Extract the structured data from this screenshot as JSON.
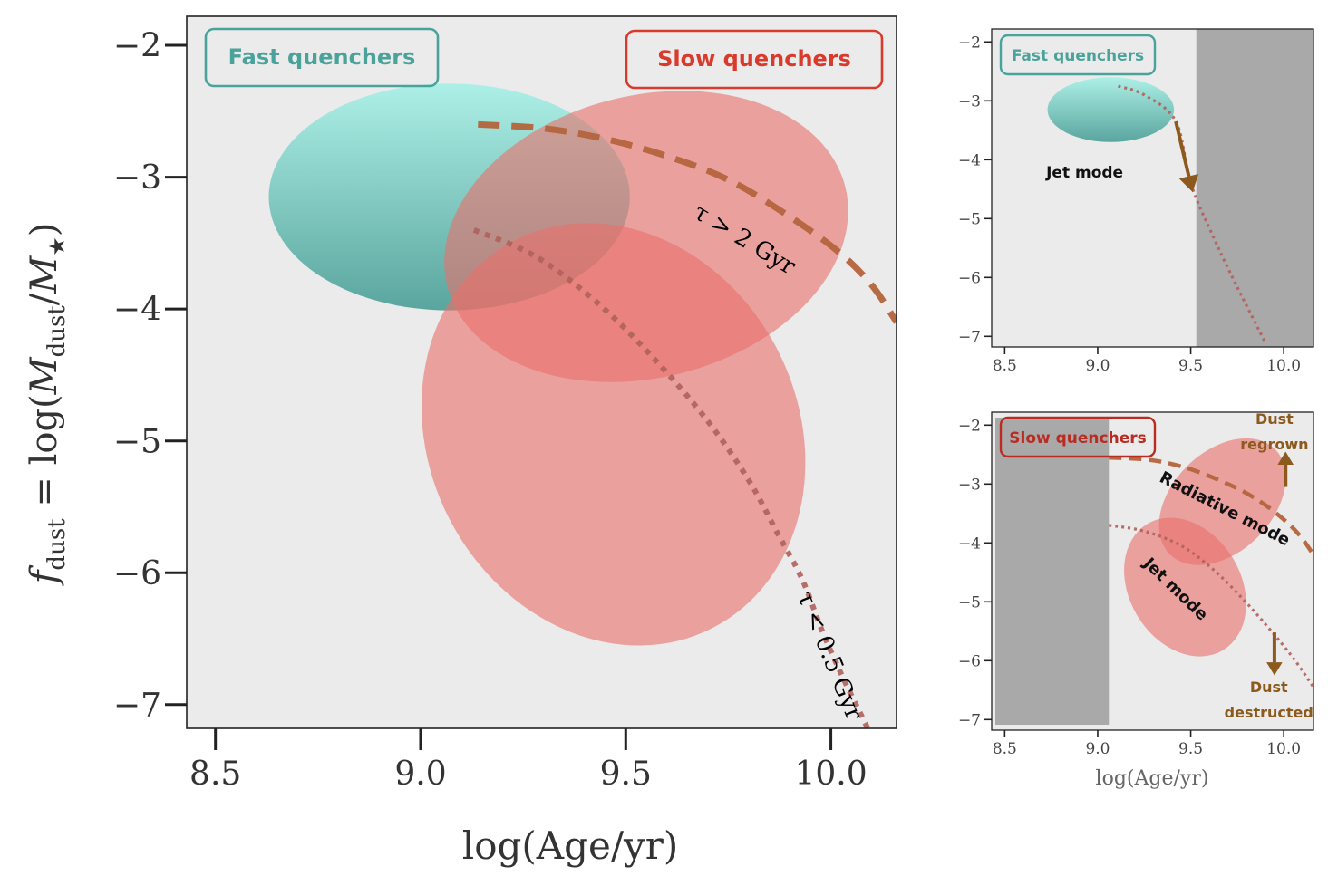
{
  "colors": {
    "panel_bg": "#ebebeb",
    "fast": "#4aa39b",
    "fast_fill_top": "#a6f0e6",
    "fast_fill_bottom": "#4a9e96",
    "slow": "#d83a2c",
    "slow_fill": "#e9706a",
    "track_dash": "#b4643c",
    "track_dot": "#b0615d",
    "arrow": "#8b5a1c",
    "grey_zone": "#a9a9a9"
  },
  "chart_data": [
    {
      "type": "scatter",
      "title": "",
      "xlabel": "log(Age/yr)",
      "ylabel": "f_dust = log(M_dust/M_★)",
      "ylabel_parts": {
        "f": "f",
        "f_sub": "dust",
        "eq": " = log(",
        "M1": "M",
        "M1_sub": "dust",
        "slash": "/",
        "M2": "M",
        "M2_sub": "★",
        "close": ")"
      },
      "xlim": [
        8.43,
        10.16
      ],
      "ylim": [
        -7.18,
        -1.78
      ],
      "xticks": [
        8.5,
        9.0,
        9.5,
        10.0
      ],
      "xtick_labels": [
        "8.5",
        "9.0",
        "9.5",
        "10.0"
      ],
      "yticks": [
        -2,
        -3,
        -4,
        -5,
        -6,
        -7
      ],
      "ytick_labels": [
        "−2",
        "−3",
        "−4",
        "−5",
        "−6",
        "−7"
      ],
      "grid": false,
      "legend_boxes": [
        {
          "label": "Fast quenchers",
          "placement": "top-left",
          "color": "fast"
        },
        {
          "label": "Slow quenchers",
          "placement": "top-right",
          "color": "slow"
        }
      ],
      "regions": [
        {
          "group": "fast",
          "cx": 9.07,
          "cy": -3.15,
          "rx": 0.44,
          "ry": 0.86,
          "angle": 0
        },
        {
          "group": "slow",
          "cx": 9.55,
          "cy": -3.45,
          "rx": 0.5,
          "ry": 1.07,
          "angle": -14
        },
        {
          "group": "slow",
          "cx": 9.47,
          "cy": -4.95,
          "rx": 0.45,
          "ry": 1.65,
          "angle": -27
        }
      ],
      "tracks": [
        {
          "label": "τ > 2 Gyr",
          "style": "dashed",
          "color": "track_dash",
          "x": [
            9.14,
            9.3,
            9.45,
            9.6,
            9.75,
            9.9,
            10.02,
            10.1,
            10.16
          ],
          "y": [
            -2.6,
            -2.63,
            -2.71,
            -2.84,
            -3.02,
            -3.3,
            -3.57,
            -3.82,
            -4.1
          ]
        },
        {
          "label": "τ < 0.5 Gyr",
          "style": "dotted",
          "color": "track_dot",
          "x": [
            9.13,
            9.28,
            9.43,
            9.57,
            9.7,
            9.8,
            9.87,
            9.93,
            9.98,
            10.03,
            10.09
          ],
          "y": [
            -3.4,
            -3.6,
            -3.95,
            -4.38,
            -4.85,
            -5.3,
            -5.7,
            -6.05,
            -6.45,
            -6.8,
            -7.18
          ]
        }
      ],
      "annotations": [
        {
          "text": "τ > 2 Gyr",
          "x": 9.78,
          "y": -3.52,
          "rotation": 31
        },
        {
          "text": "τ < 0.5 Gyr",
          "x": 9.98,
          "y": -6.65,
          "rotation": 68
        }
      ]
    },
    {
      "type": "scatter",
      "title": "",
      "xlabel": "",
      "xlim": [
        8.43,
        10.16
      ],
      "ylim": [
        -7.18,
        -1.78
      ],
      "xticks": [
        8.5,
        9.0,
        9.5,
        10.0
      ],
      "xtick_labels": [
        "8.5",
        "9.0",
        "9.5",
        "10.0"
      ],
      "yticks": [
        -2,
        -3,
        -4,
        -5,
        -6,
        -7
      ],
      "ytick_labels": [
        "−2",
        "−3",
        "−4",
        "−5",
        "−6",
        "−7"
      ],
      "legend_box": {
        "label": "Fast quenchers",
        "placement": "top-left",
        "color": "fast"
      },
      "grey_zone": {
        "x0": 9.53,
        "x1": 10.16
      },
      "regions": [
        {
          "group": "fast",
          "cx": 9.07,
          "cy": -3.15,
          "rx": 0.34,
          "ry": 0.55,
          "angle": 0
        }
      ],
      "tracks": [
        {
          "style": "dotted",
          "x": [
            9.11,
            9.25,
            9.42,
            9.5,
            9.62,
            9.74,
            9.86,
            9.9
          ],
          "y": [
            -2.75,
            -2.9,
            -3.35,
            -4.4,
            -5.3,
            -6.1,
            -6.85,
            -7.1
          ]
        }
      ],
      "arrow": {
        "from": [
          9.42,
          -3.35
        ],
        "to": [
          9.51,
          -4.55
        ]
      },
      "annotations": [
        {
          "text": "Jet mode",
          "x": 8.93,
          "y": -4.3
        }
      ]
    },
    {
      "type": "scatter",
      "title": "",
      "xlabel": "log(Age/yr)",
      "xlim": [
        8.43,
        10.16
      ],
      "ylim": [
        -7.18,
        -1.78
      ],
      "xticks": [
        8.5,
        9.0,
        9.5,
        10.0
      ],
      "xtick_labels": [
        "8.5",
        "9.0",
        "9.5",
        "10.0"
      ],
      "yticks": [
        -2,
        -3,
        -4,
        -5,
        -6,
        -7
      ],
      "ytick_labels": [
        "−2",
        "−3",
        "−4",
        "−5",
        "−6",
        "−7"
      ],
      "legend_box": {
        "label": "Slow quenchers",
        "placement": "top-left",
        "color": "slow"
      },
      "grey_zone": {
        "x0": 8.43,
        "x1": 9.06
      },
      "regions": [
        {
          "group": "slow",
          "cx": 9.67,
          "cy": -3.3,
          "rx": 0.4,
          "ry": 0.85,
          "angle": -45
        },
        {
          "group": "slow",
          "cx": 9.47,
          "cy": -4.75,
          "rx": 0.3,
          "ry": 1.25,
          "angle": -31
        }
      ],
      "tracks": [
        {
          "style": "dashed",
          "x": [
            9.06,
            9.3,
            9.5,
            9.7,
            9.85,
            9.98,
            10.08,
            10.16
          ],
          "y": [
            -2.55,
            -2.6,
            -2.75,
            -3.0,
            -3.25,
            -3.55,
            -3.85,
            -4.2
          ]
        },
        {
          "style": "dotted",
          "x": [
            9.06,
            9.25,
            9.45,
            9.62,
            9.78,
            9.92,
            10.05,
            10.16
          ],
          "y": [
            -3.7,
            -3.8,
            -4.05,
            -4.45,
            -4.95,
            -5.45,
            -5.95,
            -6.45
          ]
        }
      ],
      "arrows": [
        {
          "from": [
            10.01,
            -3.05
          ],
          "to": [
            10.01,
            -2.45
          ],
          "label": [
            "Dust",
            "regrown"
          ],
          "label_x": 9.95,
          "label_y": -2.12
        },
        {
          "from": [
            9.95,
            -5.52
          ],
          "to": [
            9.95,
            -6.25
          ],
          "label": [
            "Dust",
            "destructed"
          ],
          "label_x": 9.92,
          "label_y": -6.67
        }
      ],
      "annotations": [
        {
          "text": "Radiative mode",
          "x": 9.67,
          "y": -3.5,
          "rotation": 27
        },
        {
          "text": "Jet mode",
          "x": 9.4,
          "y": -4.85,
          "rotation": 44
        }
      ]
    }
  ]
}
